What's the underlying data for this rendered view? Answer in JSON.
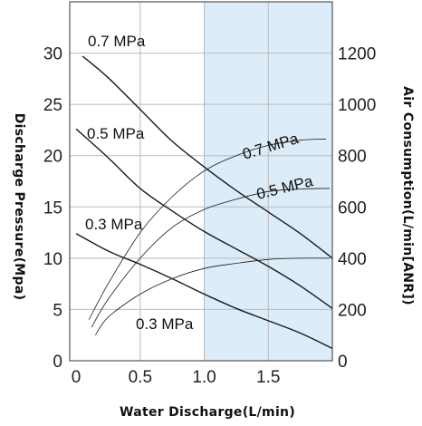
{
  "chart_data": {
    "type": "line",
    "xlabel": "Water Discharge(L/min)",
    "ylabel_left": "Discharge Pressure(Mpa)",
    "ylabel_right": "Air Consumption(L/min[ANR])",
    "xlim": [
      -0.05,
      2.0
    ],
    "ylim_left": [
      0,
      35
    ],
    "ylim_right": [
      0,
      1400
    ],
    "x_ticks": [
      "0",
      "0.5",
      "1.0",
      "1.5"
    ],
    "y_left_ticks": [
      "0",
      "5",
      "10",
      "15",
      "20",
      "25",
      "30"
    ],
    "y_right_ticks": [
      "0",
      "200",
      "400",
      "600",
      "800",
      "1000",
      "1200"
    ],
    "x_tick_values": [
      0,
      0.5,
      1.0,
      1.5
    ],
    "y_left_tick_values": [
      0,
      5,
      10,
      15,
      20,
      25,
      30
    ],
    "y_right_tick_values": [
      0,
      200,
      400,
      600,
      800,
      1000,
      1200
    ],
    "grid": true,
    "highlight_region": {
      "x_from": 1.0,
      "x_to": 2.0,
      "color": "#dcecf8"
    },
    "colors": {
      "line": "#1a1a1a",
      "grid": "#bbbbbb",
      "highlight": "#dcecf8",
      "highlight_border": "#9cc3e6"
    },
    "pressure_series": [
      {
        "name": "0.7 MPa",
        "x": [
          0.05,
          0.25,
          0.5,
          0.75,
          1.0,
          1.25,
          1.5,
          1.75,
          2.0
        ],
        "y": [
          29.7,
          27.6,
          24.5,
          21.4,
          18.9,
          16.6,
          14.5,
          12.4,
          10.0
        ]
      },
      {
        "name": "0.5 MPa",
        "x": [
          0.0,
          0.25,
          0.5,
          0.75,
          1.0,
          1.25,
          1.5,
          1.75,
          2.0
        ],
        "y": [
          22.6,
          19.8,
          16.8,
          14.6,
          12.6,
          10.9,
          9.2,
          7.3,
          5.1
        ]
      },
      {
        "name": "0.3 MPa",
        "x": [
          0.0,
          0.25,
          0.5,
          0.75,
          1.0,
          1.25,
          1.5,
          1.75,
          2.0
        ],
        "y": [
          12.4,
          10.7,
          9.4,
          8.0,
          6.5,
          5.1,
          3.9,
          2.7,
          1.2
        ]
      }
    ],
    "air_series": [
      {
        "name": "0.7 MPa",
        "x": [
          0.1,
          0.25,
          0.5,
          0.75,
          1.0,
          1.25,
          1.5,
          1.75,
          1.95
        ],
        "y": [
          160,
          300,
          500,
          640,
          740,
          800,
          840,
          860,
          865
        ]
      },
      {
        "name": "0.5 MPa",
        "x": [
          0.12,
          0.25,
          0.5,
          0.75,
          1.0,
          1.25,
          1.5,
          1.75,
          1.98
        ],
        "y": [
          130,
          240,
          400,
          520,
          590,
          630,
          660,
          670,
          672
        ]
      },
      {
        "name": "0.3 MPa",
        "x": [
          0.15,
          0.25,
          0.5,
          0.75,
          1.0,
          1.25,
          1.5,
          1.75,
          1.98
        ],
        "y": [
          100,
          170,
          260,
          320,
          360,
          380,
          395,
          400,
          400
        ]
      }
    ],
    "labels": {
      "pressure_07": "0.7 MPa",
      "pressure_05": "0.5 MPa",
      "pressure_03": "0.3 MPa",
      "air_07": "0.7 MPa",
      "air_05": "0.5 MPa",
      "air_03": "0.3 MPa"
    }
  }
}
